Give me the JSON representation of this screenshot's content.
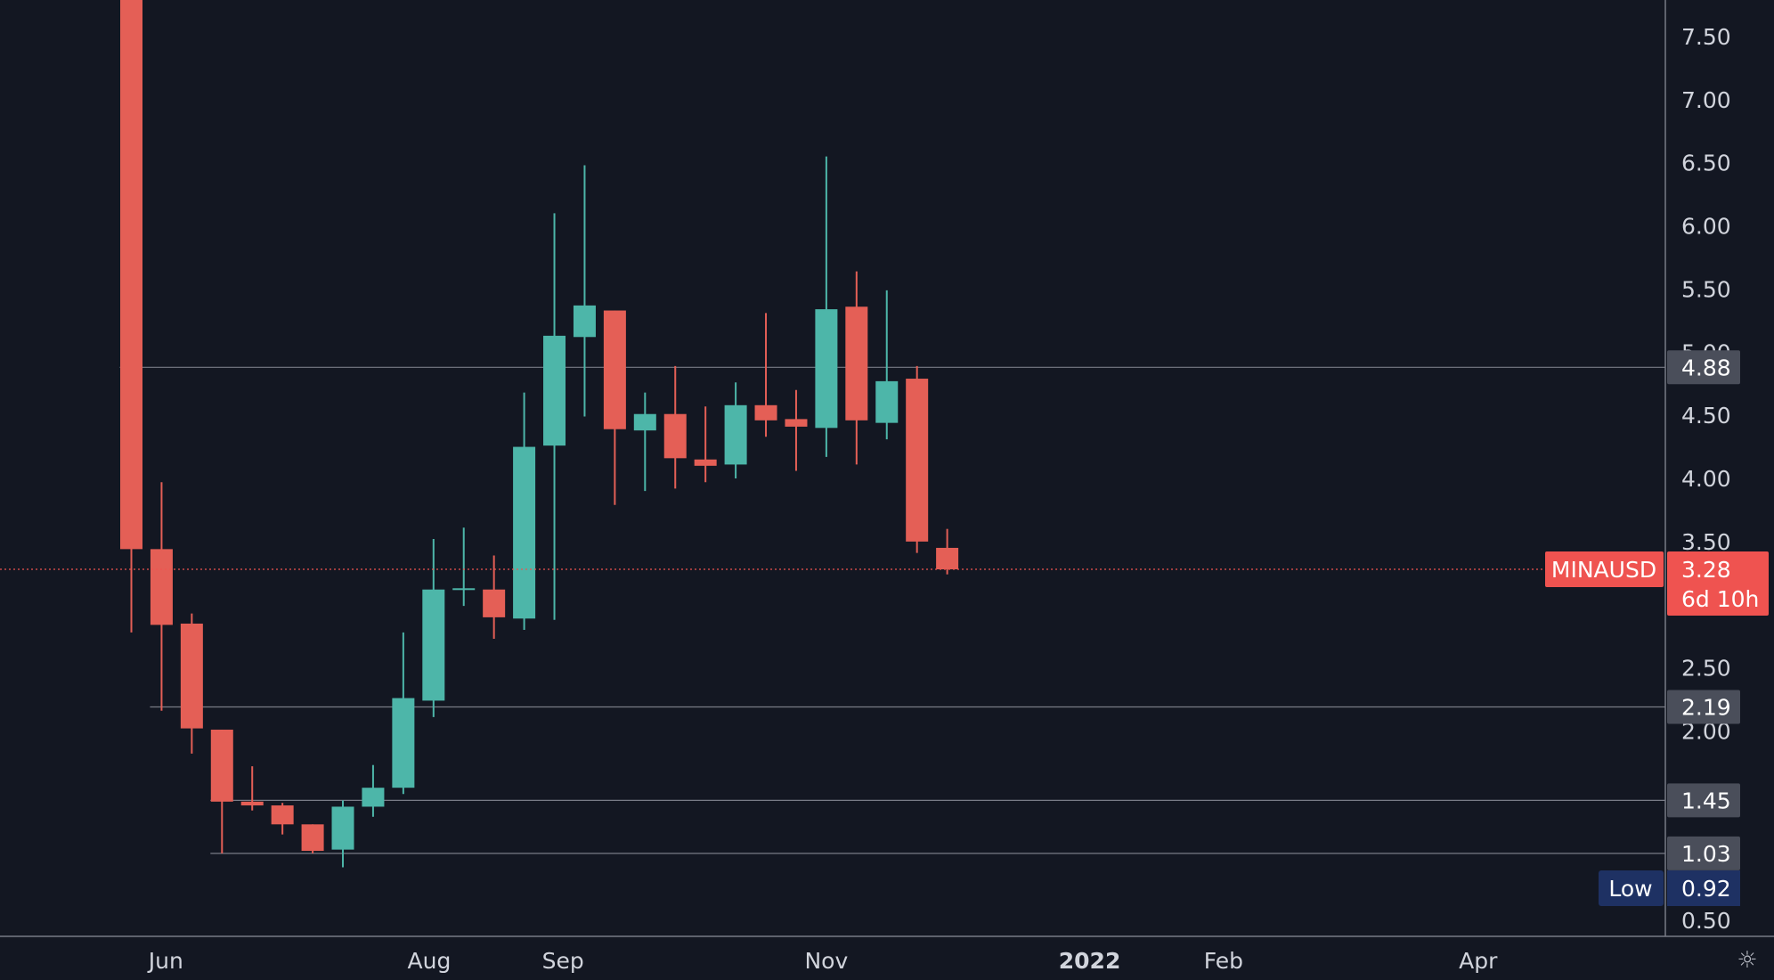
{
  "chart_data": {
    "type": "candlestick",
    "title": "",
    "xlabel": "",
    "ylabel": "",
    "symbol": "MINAUSD",
    "ylim": [
      0.45,
      7.8
    ],
    "y_ticks": [
      "7.50",
      "7.00",
      "6.50",
      "6.00",
      "5.50",
      "5.00",
      "4.50",
      "4.00",
      "3.50",
      "2.50",
      "2.00",
      "0.50"
    ],
    "x_ticks": [
      {
        "label": "Jun",
        "date": "2021-06-01",
        "bold": false
      },
      {
        "label": "Aug",
        "date": "2021-08-01",
        "bold": false
      },
      {
        "label": "Sep",
        "date": "2021-09-01",
        "bold": false
      },
      {
        "label": "Nov",
        "date": "2021-11-01",
        "bold": false
      },
      {
        "label": "2022",
        "date": "2022-01-01",
        "bold": true
      },
      {
        "label": "Feb",
        "date": "2022-02-01",
        "bold": false
      },
      {
        "label": "Apr",
        "date": "2022-04-01",
        "bold": false
      }
    ],
    "grid": false,
    "candles": [
      {
        "date": "2021-05-24",
        "open": 7.9,
        "high": 7.9,
        "low": 2.78,
        "close": 3.44
      },
      {
        "date": "2021-05-31",
        "open": 3.44,
        "high": 3.97,
        "low": 2.16,
        "close": 2.84
      },
      {
        "date": "2021-06-07",
        "open": 2.85,
        "high": 2.93,
        "low": 1.82,
        "close": 2.02
      },
      {
        "date": "2021-06-14",
        "open": 2.01,
        "high": 2.01,
        "low": 1.03,
        "close": 1.44
      },
      {
        "date": "2021-06-21",
        "open": 1.44,
        "high": 1.72,
        "low": 1.37,
        "close": 1.41
      },
      {
        "date": "2021-06-28",
        "open": 1.41,
        "high": 1.43,
        "low": 1.18,
        "close": 1.26
      },
      {
        "date": "2021-07-05",
        "open": 1.26,
        "high": 1.26,
        "low": 1.03,
        "close": 1.05
      },
      {
        "date": "2021-07-12",
        "open": 1.06,
        "high": 1.45,
        "low": 0.92,
        "close": 1.4
      },
      {
        "date": "2021-07-19",
        "open": 1.4,
        "high": 1.73,
        "low": 1.32,
        "close": 1.55
      },
      {
        "date": "2021-07-26",
        "open": 1.55,
        "high": 2.78,
        "low": 1.5,
        "close": 2.26
      },
      {
        "date": "2021-08-02",
        "open": 2.24,
        "high": 3.52,
        "low": 2.11,
        "close": 3.12
      },
      {
        "date": "2021-08-09",
        "open": 3.12,
        "high": 3.61,
        "low": 2.99,
        "close": 3.13
      },
      {
        "date": "2021-08-16",
        "open": 3.12,
        "high": 3.39,
        "low": 2.73,
        "close": 2.9
      },
      {
        "date": "2021-08-23",
        "open": 2.89,
        "high": 4.68,
        "low": 2.8,
        "close": 4.25
      },
      {
        "date": "2021-08-30",
        "open": 4.26,
        "high": 6.1,
        "low": 2.88,
        "close": 5.13
      },
      {
        "date": "2021-09-06",
        "open": 5.12,
        "high": 6.48,
        "low": 4.49,
        "close": 5.37
      },
      {
        "date": "2021-09-13",
        "open": 5.33,
        "high": 5.33,
        "low": 3.79,
        "close": 4.39
      },
      {
        "date": "2021-09-20",
        "open": 4.38,
        "high": 4.68,
        "low": 3.9,
        "close": 4.51
      },
      {
        "date": "2021-09-27",
        "open": 4.51,
        "high": 4.89,
        "low": 3.92,
        "close": 4.16
      },
      {
        "date": "2021-10-04",
        "open": 4.15,
        "high": 4.57,
        "low": 3.97,
        "close": 4.1
      },
      {
        "date": "2021-10-11",
        "open": 4.11,
        "high": 4.76,
        "low": 4.0,
        "close": 4.58
      },
      {
        "date": "2021-10-18",
        "open": 4.58,
        "high": 5.31,
        "low": 4.33,
        "close": 4.46
      },
      {
        "date": "2021-10-25",
        "open": 4.47,
        "high": 4.7,
        "low": 4.06,
        "close": 4.41
      },
      {
        "date": "2021-11-01",
        "open": 4.4,
        "high": 6.55,
        "low": 4.17,
        "close": 5.34
      },
      {
        "date": "2021-11-08",
        "open": 5.36,
        "high": 5.64,
        "low": 4.11,
        "close": 4.46
      },
      {
        "date": "2021-11-15",
        "open": 4.44,
        "high": 5.49,
        "low": 4.31,
        "close": 4.77
      },
      {
        "date": "2021-11-22",
        "open": 4.79,
        "high": 4.89,
        "low": 3.41,
        "close": 3.5
      },
      {
        "date": "2021-11-29",
        "open": 3.45,
        "high": 3.6,
        "low": 3.24,
        "close": 3.28
      }
    ],
    "level_lines": [
      {
        "value": 4.88,
        "label": "4.88",
        "from_date": "2021-05-24"
      },
      {
        "value": 2.19,
        "label": "2.19",
        "from_date": "2021-05-31"
      },
      {
        "value": 1.45,
        "label": "1.45",
        "from_date": "2021-06-14"
      },
      {
        "value": 1.03,
        "label": "1.03",
        "from_date": "2021-06-14"
      }
    ],
    "last_price": {
      "value": 3.28,
      "label": "3.28",
      "countdown": "6d 10h"
    },
    "low_marker": {
      "label": "Low",
      "value": 0.92,
      "value_label": "0.92"
    },
    "colors": {
      "background": "#131722",
      "up": "#26a69a",
      "up_fill": "#4db6a9",
      "down": "#ef5350",
      "down_fill": "#e45f56",
      "axis_text": "#d1d4dc",
      "level_line": "#787b86",
      "level_badge": "#4a4e5a",
      "low_badge": "#1e3163",
      "axis_border": "#363a45"
    }
  },
  "settings_icon": "sun-settings-icon"
}
